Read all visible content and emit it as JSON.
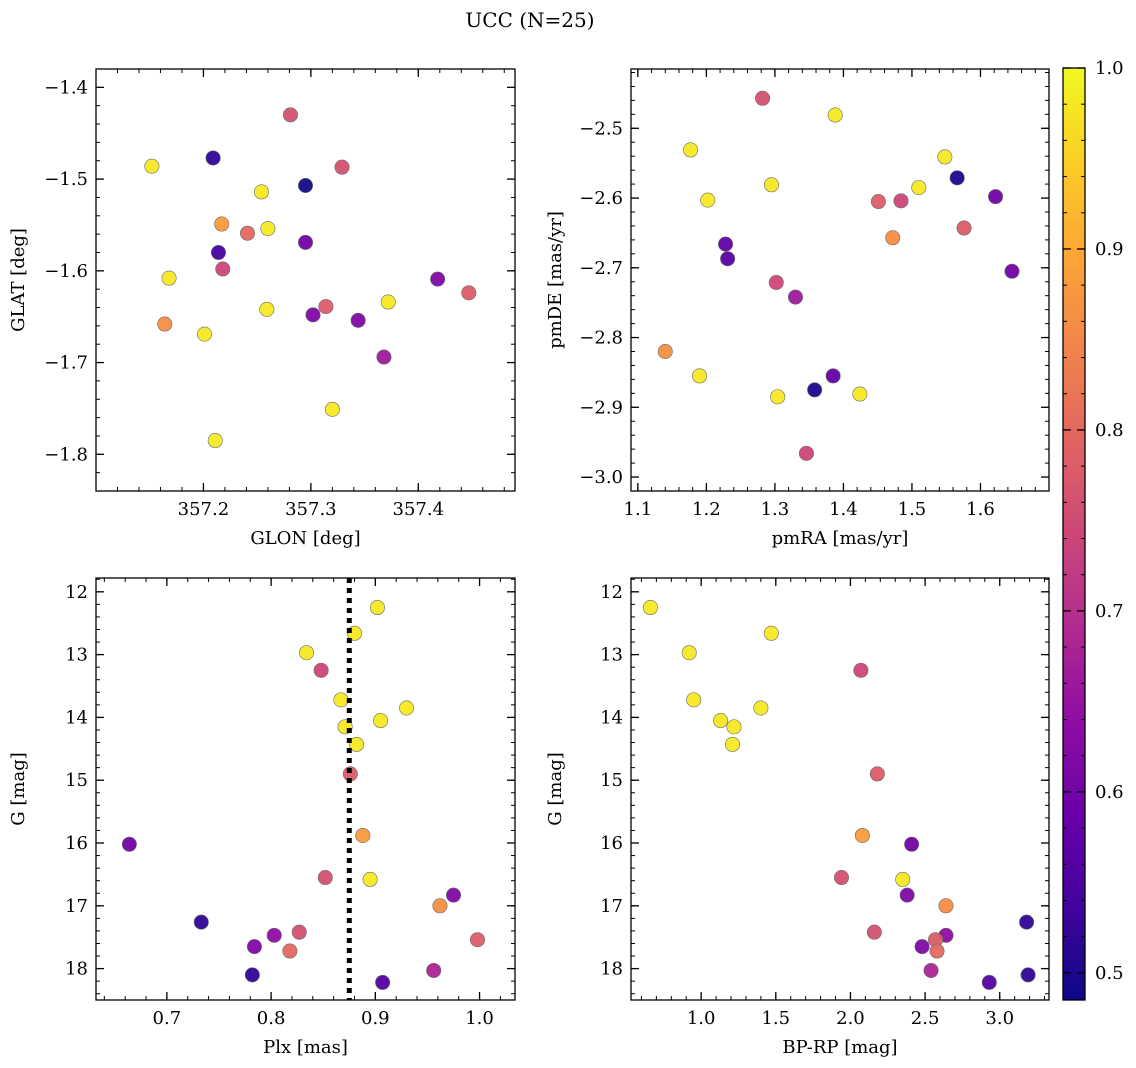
{
  "figure": {
    "suptitle": "UCC (N=25)"
  },
  "colorbar": {
    "cmap": "plasma",
    "range": [
      0.485,
      1.0
    ],
    "ticks": [
      0.5,
      0.6,
      0.7,
      0.8,
      0.9,
      1.0
    ]
  },
  "chart_data": [
    {
      "type": "scatter",
      "xlabel": "GLON [deg]",
      "ylabel": "GLAT [deg]",
      "xlim": [
        357.1,
        357.49
      ],
      "ylim": [
        -1.84,
        -1.38
      ],
      "xticks": [
        357.2,
        357.3,
        357.4
      ],
      "yticks": [
        -1.4,
        -1.5,
        -1.6,
        -1.7,
        -1.8
      ],
      "points": [
        {
          "x": 357.152,
          "y": -1.486,
          "c": 0.98
        },
        {
          "x": 357.209,
          "y": -1.477,
          "c": 0.52
        },
        {
          "x": 357.281,
          "y": -1.43,
          "c": 0.76
        },
        {
          "x": 357.329,
          "y": -1.487,
          "c": 0.76
        },
        {
          "x": 357.254,
          "y": -1.514,
          "c": 0.98
        },
        {
          "x": 357.295,
          "y": -1.507,
          "c": 0.49
        },
        {
          "x": 357.217,
          "y": -1.549,
          "c": 0.88
        },
        {
          "x": 357.26,
          "y": -1.554,
          "c": 0.98
        },
        {
          "x": 357.241,
          "y": -1.559,
          "c": 0.8
        },
        {
          "x": 357.214,
          "y": -1.58,
          "c": 0.54
        },
        {
          "x": 357.295,
          "y": -1.569,
          "c": 0.6
        },
        {
          "x": 357.218,
          "y": -1.598,
          "c": 0.74
        },
        {
          "x": 357.168,
          "y": -1.608,
          "c": 0.98
        },
        {
          "x": 357.418,
          "y": -1.609,
          "c": 0.62
        },
        {
          "x": 357.447,
          "y": -1.624,
          "c": 0.78
        },
        {
          "x": 357.372,
          "y": -1.634,
          "c": 0.98
        },
        {
          "x": 357.314,
          "y": -1.639,
          "c": 0.78
        },
        {
          "x": 357.259,
          "y": -1.642,
          "c": 0.98
        },
        {
          "x": 357.302,
          "y": -1.648,
          "c": 0.62
        },
        {
          "x": 357.344,
          "y": -1.654,
          "c": 0.62
        },
        {
          "x": 357.164,
          "y": -1.658,
          "c": 0.86
        },
        {
          "x": 357.201,
          "y": -1.669,
          "c": 0.98
        },
        {
          "x": 357.368,
          "y": -1.694,
          "c": 0.66
        },
        {
          "x": 357.32,
          "y": -1.751,
          "c": 0.98
        },
        {
          "x": 357.211,
          "y": -1.785,
          "c": 0.98
        }
      ]
    },
    {
      "type": "scatter",
      "xlabel": "pmRA [mas/yr]",
      "ylabel": "pmDE [mas/yr]",
      "xlim": [
        1.09,
        1.7
      ],
      "ylim": [
        -3.02,
        -2.415
      ],
      "xticks": [
        1.1,
        1.2,
        1.3,
        1.4,
        1.5,
        1.6
      ],
      "yticks": [
        -2.5,
        -2.6,
        -2.7,
        -2.8,
        -2.9,
        -3.0
      ],
      "points": [
        {
          "x": 1.282,
          "y": -2.457,
          "c": 0.76
        },
        {
          "x": 1.388,
          "y": -2.481,
          "c": 0.98
        },
        {
          "x": 1.177,
          "y": -2.531,
          "c": 0.98
        },
        {
          "x": 1.548,
          "y": -2.541,
          "c": 0.98
        },
        {
          "x": 1.566,
          "y": -2.571,
          "c": 0.5
        },
        {
          "x": 1.295,
          "y": -2.581,
          "c": 0.98
        },
        {
          "x": 1.51,
          "y": -2.585,
          "c": 0.98
        },
        {
          "x": 1.622,
          "y": -2.598,
          "c": 0.6
        },
        {
          "x": 1.202,
          "y": -2.603,
          "c": 0.98
        },
        {
          "x": 1.451,
          "y": -2.605,
          "c": 0.78
        },
        {
          "x": 1.484,
          "y": -2.604,
          "c": 0.74
        },
        {
          "x": 1.576,
          "y": -2.643,
          "c": 0.78
        },
        {
          "x": 1.472,
          "y": -2.657,
          "c": 0.86
        },
        {
          "x": 1.228,
          "y": -2.666,
          "c": 0.58
        },
        {
          "x": 1.231,
          "y": -2.687,
          "c": 0.56
        },
        {
          "x": 1.646,
          "y": -2.705,
          "c": 0.6
        },
        {
          "x": 1.302,
          "y": -2.721,
          "c": 0.74
        },
        {
          "x": 1.33,
          "y": -2.742,
          "c": 0.66
        },
        {
          "x": 1.14,
          "y": -2.82,
          "c": 0.86
        },
        {
          "x": 1.19,
          "y": -2.855,
          "c": 0.98
        },
        {
          "x": 1.385,
          "y": -2.855,
          "c": 0.58
        },
        {
          "x": 1.358,
          "y": -2.875,
          "c": 0.5
        },
        {
          "x": 1.424,
          "y": -2.881,
          "c": 0.98
        },
        {
          "x": 1.304,
          "y": -2.885,
          "c": 0.98
        },
        {
          "x": 1.346,
          "y": -2.966,
          "c": 0.74
        }
      ]
    },
    {
      "type": "scatter",
      "xlabel": "Plx [mas]",
      "ylabel": "G [mag]",
      "xlim": [
        0.632,
        1.034
      ],
      "ylim": [
        18.5,
        11.78
      ],
      "yinverted": true,
      "xticks": [
        0.7,
        0.8,
        0.9,
        1.0
      ],
      "yticks": [
        12,
        13,
        14,
        15,
        16,
        17,
        18
      ],
      "vline": 0.875,
      "points": [
        {
          "x": 0.902,
          "y": 12.25,
          "c": 0.98
        },
        {
          "x": 0.88,
          "y": 12.66,
          "c": 0.98
        },
        {
          "x": 0.834,
          "y": 12.97,
          "c": 0.98
        },
        {
          "x": 0.848,
          "y": 13.25,
          "c": 0.74
        },
        {
          "x": 0.93,
          "y": 13.85,
          "c": 0.98
        },
        {
          "x": 0.867,
          "y": 13.72,
          "c": 0.98
        },
        {
          "x": 0.905,
          "y": 14.05,
          "c": 0.98
        },
        {
          "x": 0.871,
          "y": 14.15,
          "c": 0.98
        },
        {
          "x": 0.882,
          "y": 14.43,
          "c": 0.98
        },
        {
          "x": 0.876,
          "y": 14.9,
          "c": 0.78
        },
        {
          "x": 0.664,
          "y": 16.02,
          "c": 0.6
        },
        {
          "x": 0.888,
          "y": 15.88,
          "c": 0.88
        },
        {
          "x": 0.852,
          "y": 16.55,
          "c": 0.76
        },
        {
          "x": 0.895,
          "y": 16.58,
          "c": 0.98
        },
        {
          "x": 0.962,
          "y": 17.0,
          "c": 0.86
        },
        {
          "x": 0.975,
          "y": 16.83,
          "c": 0.62
        },
        {
          "x": 0.733,
          "y": 17.26,
          "c": 0.52
        },
        {
          "x": 0.827,
          "y": 17.42,
          "c": 0.76
        },
        {
          "x": 0.803,
          "y": 17.47,
          "c": 0.64
        },
        {
          "x": 0.784,
          "y": 17.65,
          "c": 0.62
        },
        {
          "x": 0.818,
          "y": 17.72,
          "c": 0.8
        },
        {
          "x": 0.998,
          "y": 17.54,
          "c": 0.78
        },
        {
          "x": 0.956,
          "y": 18.03,
          "c": 0.68
        },
        {
          "x": 0.782,
          "y": 18.1,
          "c": 0.52
        },
        {
          "x": 0.907,
          "y": 18.22,
          "c": 0.56
        }
      ]
    },
    {
      "type": "scatter",
      "xlabel": "BP-RP [mag]",
      "ylabel": "G [mag]",
      "xlim": [
        0.53,
        3.33
      ],
      "ylim": [
        18.5,
        11.78
      ],
      "yinverted": true,
      "xticks": [
        1.0,
        1.5,
        2.0,
        2.5,
        3.0
      ],
      "yticks": [
        12,
        13,
        14,
        15,
        16,
        17,
        18
      ],
      "points": [
        {
          "x": 0.66,
          "y": 12.25,
          "c": 0.98
        },
        {
          "x": 1.47,
          "y": 12.66,
          "c": 0.98
        },
        {
          "x": 0.92,
          "y": 12.97,
          "c": 0.98
        },
        {
          "x": 2.07,
          "y": 13.25,
          "c": 0.74
        },
        {
          "x": 0.95,
          "y": 13.72,
          "c": 0.98
        },
        {
          "x": 1.4,
          "y": 13.85,
          "c": 0.98
        },
        {
          "x": 1.13,
          "y": 14.05,
          "c": 0.98
        },
        {
          "x": 1.22,
          "y": 14.15,
          "c": 0.98
        },
        {
          "x": 1.21,
          "y": 14.43,
          "c": 0.98
        },
        {
          "x": 2.18,
          "y": 14.9,
          "c": 0.78
        },
        {
          "x": 2.08,
          "y": 15.88,
          "c": 0.88
        },
        {
          "x": 2.41,
          "y": 16.02,
          "c": 0.6
        },
        {
          "x": 1.94,
          "y": 16.55,
          "c": 0.76
        },
        {
          "x": 2.35,
          "y": 16.58,
          "c": 0.98
        },
        {
          "x": 2.38,
          "y": 16.83,
          "c": 0.62
        },
        {
          "x": 2.64,
          "y": 17.0,
          "c": 0.86
        },
        {
          "x": 3.18,
          "y": 17.26,
          "c": 0.52
        },
        {
          "x": 2.16,
          "y": 17.42,
          "c": 0.76
        },
        {
          "x": 2.64,
          "y": 17.47,
          "c": 0.64
        },
        {
          "x": 2.57,
          "y": 17.54,
          "c": 0.78
        },
        {
          "x": 2.48,
          "y": 17.65,
          "c": 0.62
        },
        {
          "x": 2.58,
          "y": 17.72,
          "c": 0.8
        },
        {
          "x": 2.54,
          "y": 18.03,
          "c": 0.68
        },
        {
          "x": 3.19,
          "y": 18.1,
          "c": 0.52
        },
        {
          "x": 2.93,
          "y": 18.22,
          "c": 0.56
        }
      ]
    }
  ]
}
